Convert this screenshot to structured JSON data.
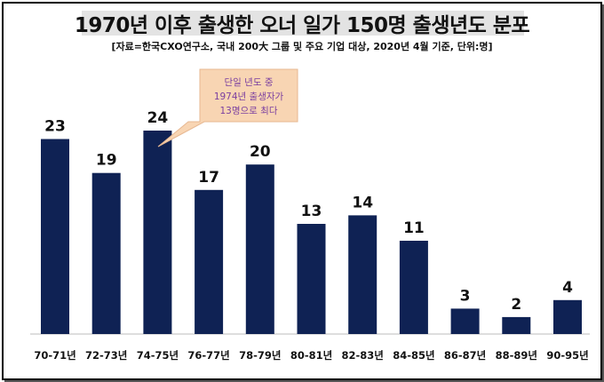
{
  "title": "1970년 이후 출생한 오너 일가 150명 출생년도 분포",
  "subtitle": "[자료=한국CXO연구소, 국내 200大 그룹 및 주요 기업 대상, 2020년 4월 기준, 단위:명]",
  "callout": {
    "lines": [
      "단일 년도 중",
      "1974년 출생자가",
      "13명으로 최다"
    ]
  },
  "colors": {
    "bar": "#0f2254",
    "callout_bg": "#f8d5b3",
    "callout_text": "#7a3ea0"
  },
  "chart_data": {
    "type": "bar",
    "categories": [
      "70-71년",
      "72-73년",
      "74-75년",
      "76-77년",
      "78-79년",
      "80-81년",
      "82-83년",
      "84-85년",
      "86-87년",
      "88-89년",
      "90-95년"
    ],
    "values": [
      23,
      19,
      24,
      17,
      20,
      13,
      14,
      11,
      3,
      2,
      4
    ],
    "title": "1970년 이후 출생한 오너 일가 150명 출생년도 분포",
    "ylim": [
      0,
      24
    ],
    "grid": false,
    "legend": "none"
  }
}
